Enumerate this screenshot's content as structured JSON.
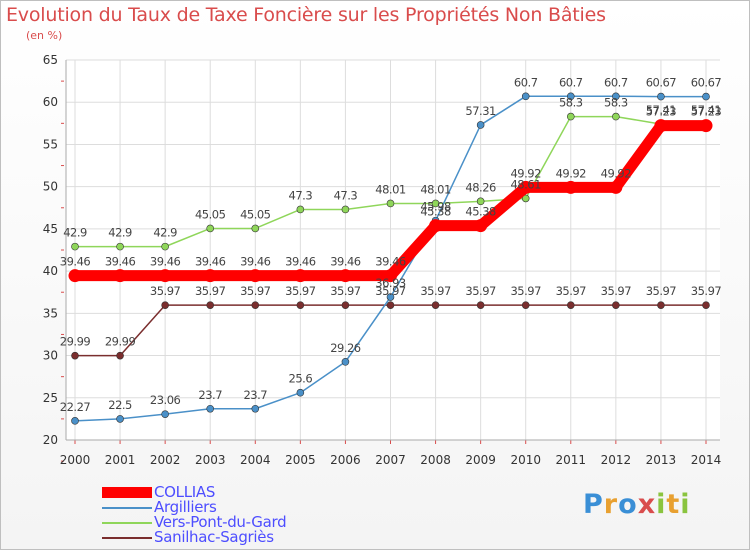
{
  "title": "Evolution du Taux de Taxe Foncière sur les Propriétés Non Bâties",
  "unit_label": "(en %)",
  "brand": "Proxiti",
  "colors": {
    "title": "#d94c4c",
    "grid": "#dddddd",
    "legend_text": "#4d4dff"
  },
  "chart_data": {
    "type": "line",
    "title": "Evolution du Taux de Taxe Foncière sur les Propriétés Non Bâties",
    "ylabel": "(en %)",
    "xlabel": "",
    "ylim": [
      20,
      65
    ],
    "yticks": [
      20,
      25,
      30,
      35,
      40,
      45,
      50,
      55,
      60,
      65
    ],
    "categories": [
      "2000",
      "2001",
      "2002",
      "2003",
      "2004",
      "2005",
      "2006",
      "2007",
      "2008",
      "2009",
      "2010",
      "2011",
      "2012",
      "2013",
      "2014"
    ],
    "series": [
      {
        "name": "COLLIAS",
        "color": "#ff0000",
        "bold": true,
        "values": [
          39.46,
          39.46,
          39.46,
          39.46,
          39.46,
          39.46,
          39.46,
          39.46,
          45.38,
          45.38,
          49.92,
          49.92,
          49.92,
          57.23,
          57.23
        ],
        "labels": [
          "39.46",
          "39.46",
          "39.46",
          "39.46",
          "39.46",
          "39.46",
          "39.46",
          "39.46",
          "45.38",
          "45.38",
          "49.92",
          "49.92",
          "49.92",
          "57.23",
          "57.23"
        ]
      },
      {
        "name": "Argilliers",
        "color": "#4a90c8",
        "values": [
          22.27,
          22.5,
          23.06,
          23.7,
          23.7,
          25.6,
          29.26,
          36.93,
          45.98,
          57.31,
          60.7,
          60.7,
          60.7,
          60.67,
          60.67
        ],
        "labels": [
          "22.27",
          "22.5",
          "23.06",
          "23.7",
          "23.7",
          "25.6",
          "29.26",
          "36.93",
          "45.98",
          "57.31",
          "60.7",
          "60.7",
          "60.7",
          "60.67",
          "60.67"
        ]
      },
      {
        "name": "Vers-Pont-du-Gard",
        "color": "#8fd65a",
        "values": [
          42.9,
          42.9,
          42.9,
          45.05,
          45.05,
          47.3,
          47.3,
          48.01,
          48.01,
          48.26,
          48.61,
          58.3,
          58.3,
          57.41,
          57.41
        ],
        "labels": [
          "42.9",
          "42.9",
          "42.9",
          "45.05",
          "45.05",
          "47.3",
          "47.3",
          "48.01",
          "48.01",
          "48.26",
          "48.61",
          "58.3",
          "58.3",
          "57.41",
          "57.41"
        ]
      },
      {
        "name": "Sanilhac-Sagriès",
        "color": "#7a2e2e",
        "values": [
          29.99,
          29.99,
          35.97,
          35.97,
          35.97,
          35.97,
          35.97,
          35.97,
          35.97,
          35.97,
          35.97,
          35.97,
          35.97,
          35.97,
          35.97
        ],
        "labels": [
          "29.99",
          "29.99",
          "35.97",
          "35.97",
          "35.97",
          "35.97",
          "35.97",
          "35.97",
          "35.97",
          "35.97",
          "35.97",
          "35.97",
          "35.97",
          "35.97",
          "35.97"
        ]
      }
    ]
  }
}
